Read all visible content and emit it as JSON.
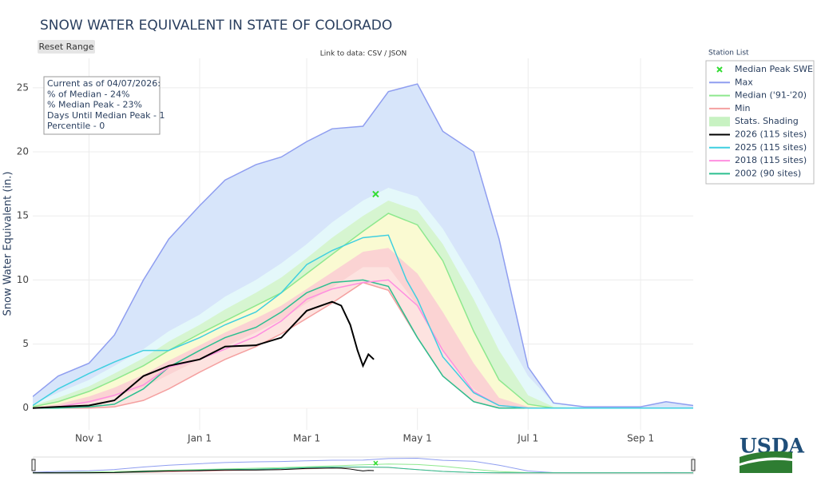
{
  "ui": {
    "reset_button": "Reset Range",
    "data_link": "Link to data: CSV / JSON",
    "logo": "USDA"
  },
  "chart_data": {
    "type": "line",
    "title": "SNOW WATER EQUIVALENT IN STATE OF COLORADO",
    "y_label": "Snow Water Equivalent (in.)",
    "annotation": [
      "Current as of 04/07/2026:",
      "% of Median - 24%",
      "% Median Peak - 23%",
      "Days Until Median Peak - 1",
      "Percentile - 0"
    ],
    "legend": {
      "title": "Station List",
      "position": "right"
    },
    "grid": true,
    "xlim": [
      "Oct 1",
      "Sep 30"
    ],
    "xticks": [
      "Nov 1",
      "Jan 1",
      "Mar 1",
      "May 1",
      "Jul 1",
      "Sep 1"
    ],
    "ylim": [
      -1.7,
      27.3
    ],
    "yticks": [
      0,
      5,
      10,
      15,
      20,
      25
    ],
    "x": [
      "Oct 1",
      "Oct 15",
      "Nov 1",
      "Nov 15",
      "Dec 1",
      "Dec 15",
      "Jan 1",
      "Jan 15",
      "Feb 1",
      "Feb 15",
      "Mar 1",
      "Mar 15",
      "Apr 1",
      "Apr 15",
      "May 1",
      "May 15",
      "Jun 1",
      "Jun 15",
      "Jul 1",
      "Jul 15",
      "Aug 1",
      "Aug 15",
      "Sep 1",
      "Sep 15",
      "Sep 30"
    ],
    "peak": {
      "name": "Median Peak SWE",
      "color": "#33dd33",
      "x": "Apr 8",
      "value": 16.7
    },
    "shading": {
      "name": "Stats. Shading",
      "color": "#c8f2c2",
      "bands": [
        {
          "color": "#d7e5fa",
          "values": [
            0.9,
            2.5,
            3.5,
            5.7,
            10,
            13.2,
            15.8,
            17.8,
            19,
            19.6,
            20.8,
            21.8,
            22,
            24.7,
            25.3,
            21.6,
            20,
            13.2,
            3.2,
            0.4,
            0.1,
            0.1,
            0.1,
            0.5,
            0.2
          ]
        },
        {
          "color": "#e4f8fa",
          "values": [
            0.3,
            1.2,
            2.2,
            3.3,
            4.6,
            6,
            7.3,
            8.7,
            10,
            11.3,
            12.8,
            14.5,
            16.2,
            17.2,
            16.5,
            14,
            10,
            6.5,
            2.5,
            0.4,
            0,
            0,
            0,
            0,
            0
          ]
        },
        {
          "color": "#d6f5d0",
          "values": [
            0.2,
            0.8,
            1.7,
            2.7,
            3.9,
            5.2,
            6.5,
            7.7,
            9,
            10.2,
            11.7,
            13.3,
            15,
            16.2,
            15.4,
            12.8,
            8.5,
            4.5,
            1,
            0.1,
            0,
            0,
            0,
            0,
            0
          ]
        },
        {
          "color": "#fafad2",
          "values": [
            0.1,
            0.5,
            1.3,
            2.2,
            3.3,
            4.5,
            5.8,
            6.8,
            8,
            9,
            10.5,
            12,
            13.8,
            15.2,
            14.3,
            11.5,
            6,
            2.2,
            0.3,
            0,
            0,
            0,
            0,
            0,
            0
          ]
        },
        {
          "color": "#fbd3d3",
          "values": [
            0.05,
            0.3,
            0.9,
            1.6,
            2.6,
            3.7,
            4.9,
            5.9,
            7,
            8,
            9.3,
            10.6,
            12.2,
            12.5,
            10.5,
            7.5,
            3.5,
            0.8,
            0.1,
            0,
            0,
            0,
            0,
            0,
            0
          ]
        },
        {
          "color": "#fde3e0",
          "values": [
            0,
            0.1,
            0.4,
            0.9,
            1.6,
            2.6,
            3.8,
            4.8,
            5.9,
            6.9,
            8.2,
            9.4,
            11,
            11,
            8,
            4.5,
            1.5,
            0.2,
            0,
            0,
            0,
            0,
            0,
            0,
            0
          ]
        }
      ]
    },
    "series": [
      {
        "name": "Max",
        "color": "#8f9ef0",
        "values": [
          0.9,
          2.5,
          3.5,
          5.7,
          10,
          13.2,
          15.8,
          17.8,
          19,
          19.6,
          20.8,
          21.8,
          22,
          24.7,
          25.3,
          21.6,
          20,
          13.2,
          3.2,
          0.4,
          0.1,
          0.1,
          0.1,
          0.5,
          0.2
        ]
      },
      {
        "name": "Median ('91-'20)",
        "color": "#8ee88e",
        "values": [
          0.1,
          0.5,
          1.3,
          2.2,
          3.3,
          4.5,
          5.8,
          6.8,
          8,
          9,
          10.5,
          12,
          13.8,
          15.2,
          14.3,
          11.5,
          6,
          2.2,
          0.3,
          0,
          0,
          0,
          0,
          0,
          0
        ]
      },
      {
        "name": "Min",
        "color": "#f4a0a0",
        "values": [
          0,
          0,
          0,
          0.1,
          0.6,
          1.5,
          2.8,
          3.8,
          4.8,
          5.8,
          7,
          8.2,
          9.8,
          9.2,
          5.5,
          2.5,
          0.5,
          0,
          0,
          0,
          0,
          0,
          0,
          0,
          0
        ]
      },
      {
        "name": "2026 (115 sites)",
        "color": "#000000",
        "x": [
          "Oct 1",
          "Oct 15",
          "Nov 1",
          "Nov 15",
          "Dec 1",
          "Dec 15",
          "Jan 1",
          "Jan 15",
          "Feb 1",
          "Feb 15",
          "Mar 1",
          "Mar 15",
          "Mar 20",
          "Mar 25",
          "Mar 29",
          "Apr 1",
          "Apr 4",
          "Apr 7"
        ],
        "values": [
          0,
          0.1,
          0.2,
          0.6,
          2.5,
          3.3,
          3.8,
          4.8,
          4.9,
          5.5,
          7.6,
          8.3,
          8.0,
          6.5,
          4.5,
          3.3,
          4.2,
          3.8
        ]
      },
      {
        "name": "2025 (115 sites)",
        "color": "#3fcfe0",
        "x": [
          "Oct 1",
          "Oct 15",
          "Nov 1",
          "Nov 15",
          "Dec 1",
          "Dec 15",
          "Jan 1",
          "Jan 15",
          "Feb 1",
          "Feb 15",
          "Mar 1",
          "Mar 15",
          "Apr 1",
          "Apr 15",
          "Apr 25",
          "May 1",
          "May 15",
          "Jun 1",
          "Jun 15",
          "Jul 1",
          "Sep 30"
        ],
        "values": [
          0.2,
          1.5,
          2.7,
          3.6,
          4.5,
          4.5,
          5.5,
          6.5,
          7.5,
          9,
          11.2,
          12.3,
          13.3,
          13.5,
          10,
          8.5,
          4,
          1.2,
          0.2,
          0,
          0
        ]
      },
      {
        "name": "2018 (115 sites)",
        "color": "#ff8fe0",
        "values": [
          0,
          0.1,
          0.5,
          1,
          1.8,
          3.2,
          3.8,
          4.6,
          5.6,
          6.8,
          8.5,
          9.3,
          9.8,
          10,
          8,
          4.5,
          1.3,
          0.2,
          0,
          0,
          0,
          0,
          0,
          0,
          0
        ]
      },
      {
        "name": "2002 (90 sites)",
        "color": "#2bbf8f",
        "values": [
          0,
          0,
          0.1,
          0.3,
          1.5,
          3.2,
          4.5,
          5.5,
          6.3,
          7.5,
          9,
          9.8,
          10,
          9.5,
          5.5,
          2.5,
          0.5,
          0,
          0,
          0,
          0,
          0,
          0,
          0,
          0
        ]
      }
    ]
  }
}
